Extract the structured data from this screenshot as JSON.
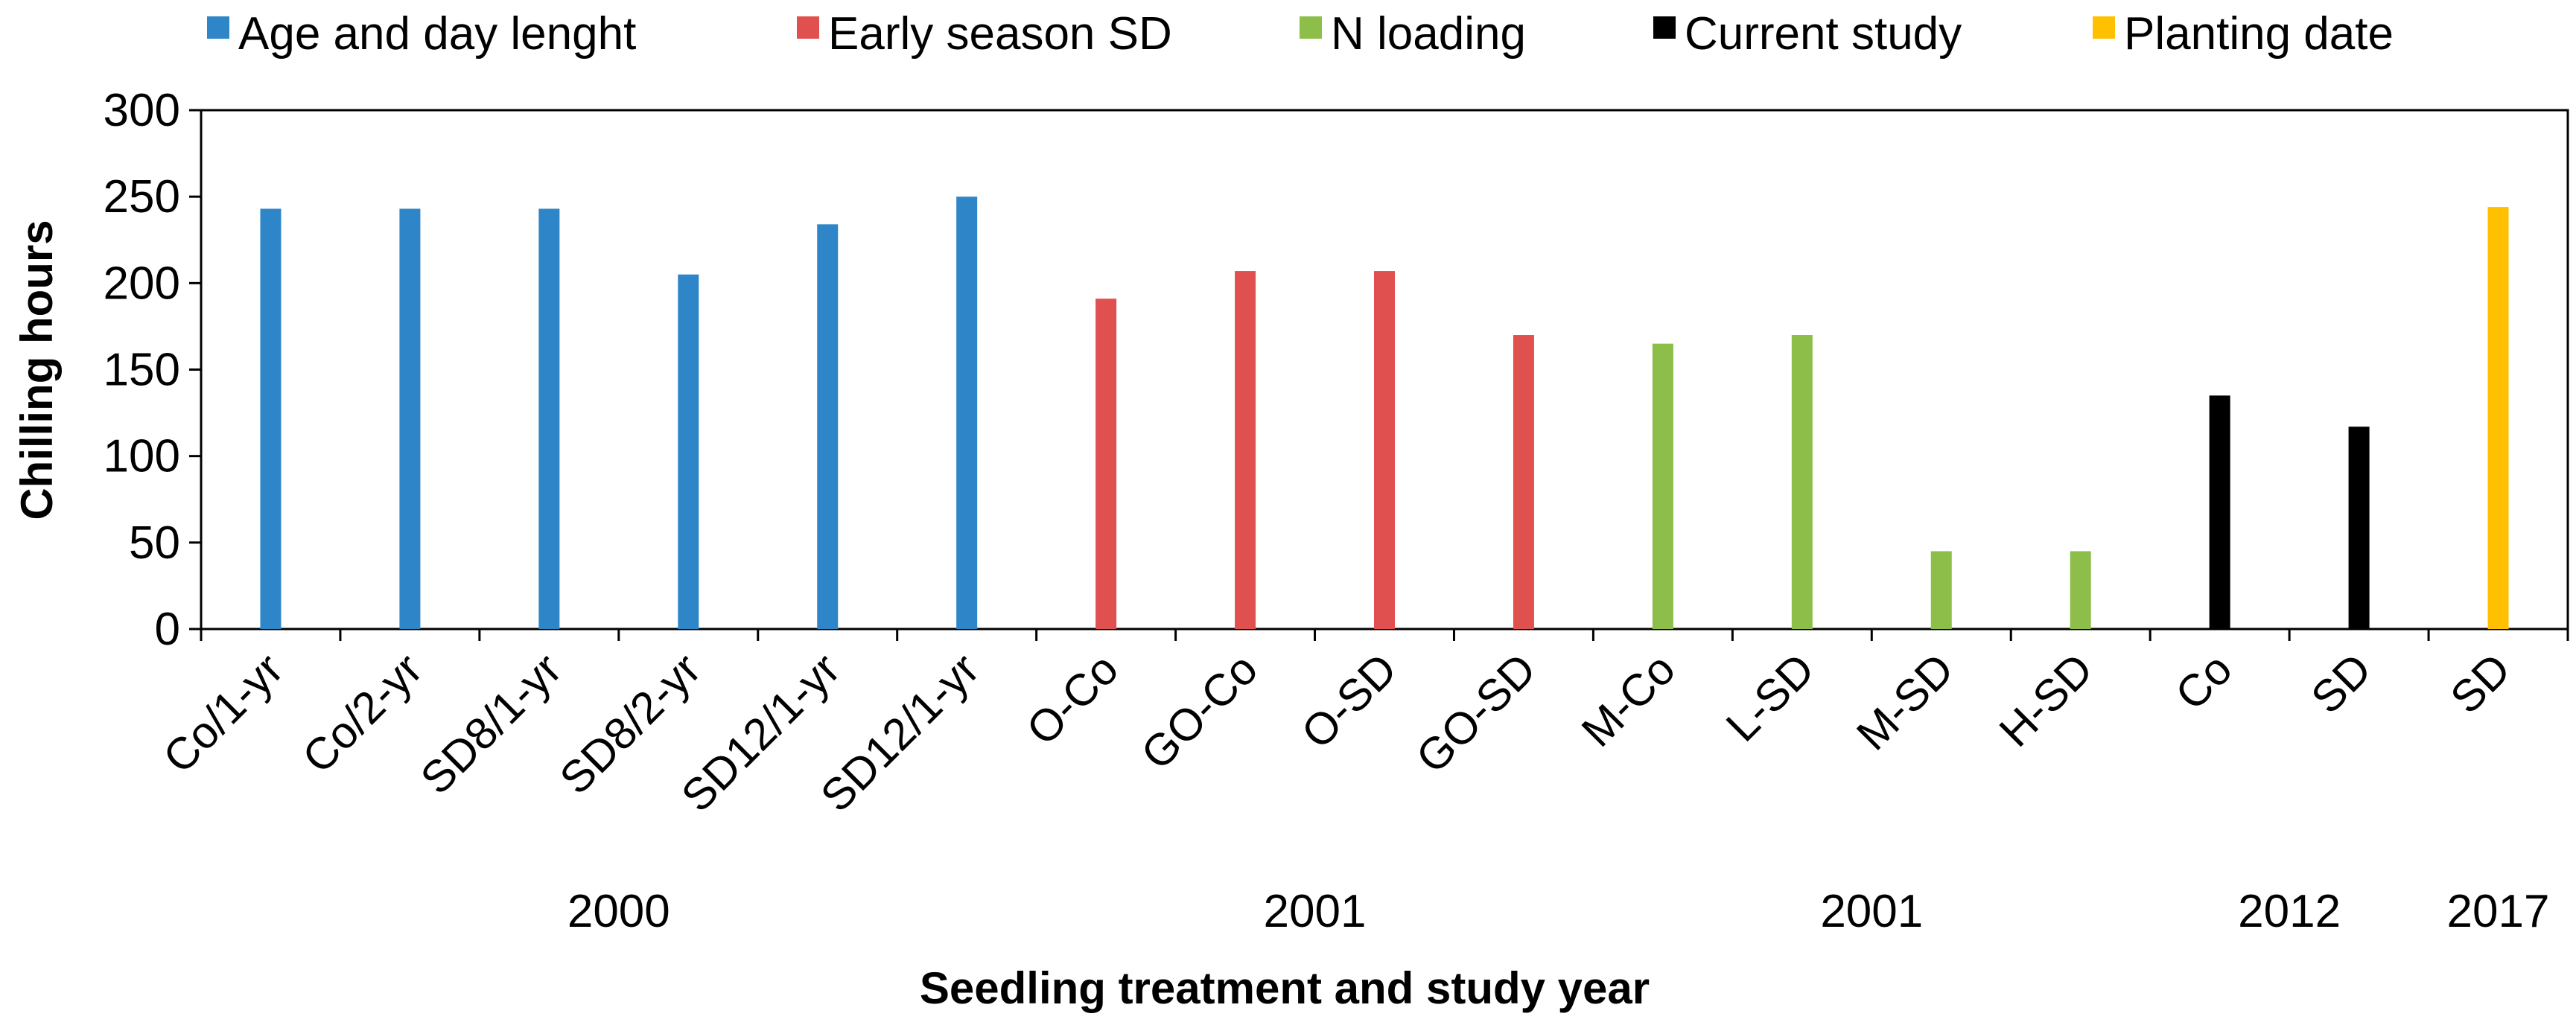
{
  "chart_data": {
    "type": "bar",
    "title": "",
    "xlabel": "Seedling treatment and study year",
    "ylabel": "Chilling hours",
    "ylim": [
      0,
      300
    ],
    "yticks": [
      0,
      50,
      100,
      150,
      200,
      250,
      300
    ],
    "grid": false,
    "legend_position": "top",
    "legend": [
      {
        "label": "Age and day lenght",
        "color": "#2E86C8"
      },
      {
        "label": "Early season SD",
        "color": "#E0504F"
      },
      {
        "label": "N loading",
        "color": "#8DBE4A"
      },
      {
        "label": "Current study",
        "color": "#000000"
      },
      {
        "label": "Planting date",
        "color": "#FFC000"
      }
    ],
    "categories": [
      "Co/1-yr",
      "Co/2-yr",
      "SD8/1-yr",
      "SD8/2-yr",
      "SD12/1-yr",
      "SD12/1-yr",
      "O-Co",
      "GO-Co",
      "O-SD",
      "GO-SD",
      "M-Co",
      "L-SD",
      "M-SD",
      "H-SD",
      "Co",
      "SD",
      "SD"
    ],
    "series": [
      {
        "name": "Age and day lenght",
        "color": "#2E86C8",
        "values": [
          243,
          243,
          243,
          205,
          234,
          250,
          null,
          null,
          null,
          null,
          null,
          null,
          null,
          null,
          null,
          null,
          null
        ]
      },
      {
        "name": "Early season SD",
        "color": "#E0504F",
        "values": [
          null,
          null,
          null,
          null,
          null,
          null,
          191,
          207,
          207,
          170,
          null,
          null,
          null,
          null,
          null,
          null,
          null
        ]
      },
      {
        "name": "N loading",
        "color": "#8DBE4A",
        "values": [
          null,
          null,
          null,
          null,
          null,
          null,
          null,
          null,
          null,
          null,
          165,
          170,
          45,
          45,
          null,
          null,
          null
        ]
      },
      {
        "name": "Current study",
        "color": "#000000",
        "values": [
          null,
          null,
          null,
          null,
          null,
          null,
          null,
          null,
          null,
          null,
          null,
          null,
          null,
          null,
          135,
          117,
          null
        ]
      },
      {
        "name": "Planting date",
        "color": "#FFC000",
        "values": [
          null,
          null,
          null,
          null,
          null,
          null,
          null,
          null,
          null,
          null,
          null,
          null,
          null,
          null,
          null,
          null,
          244
        ]
      }
    ],
    "year_groups": [
      {
        "label": "2000",
        "from": 0,
        "to": 5
      },
      {
        "label": "2001",
        "from": 6,
        "to": 9
      },
      {
        "label": "2001",
        "from": 10,
        "to": 13
      },
      {
        "label": "2012",
        "from": 14,
        "to": 15
      },
      {
        "label": "2017",
        "from": 16,
        "to": 16
      }
    ]
  }
}
